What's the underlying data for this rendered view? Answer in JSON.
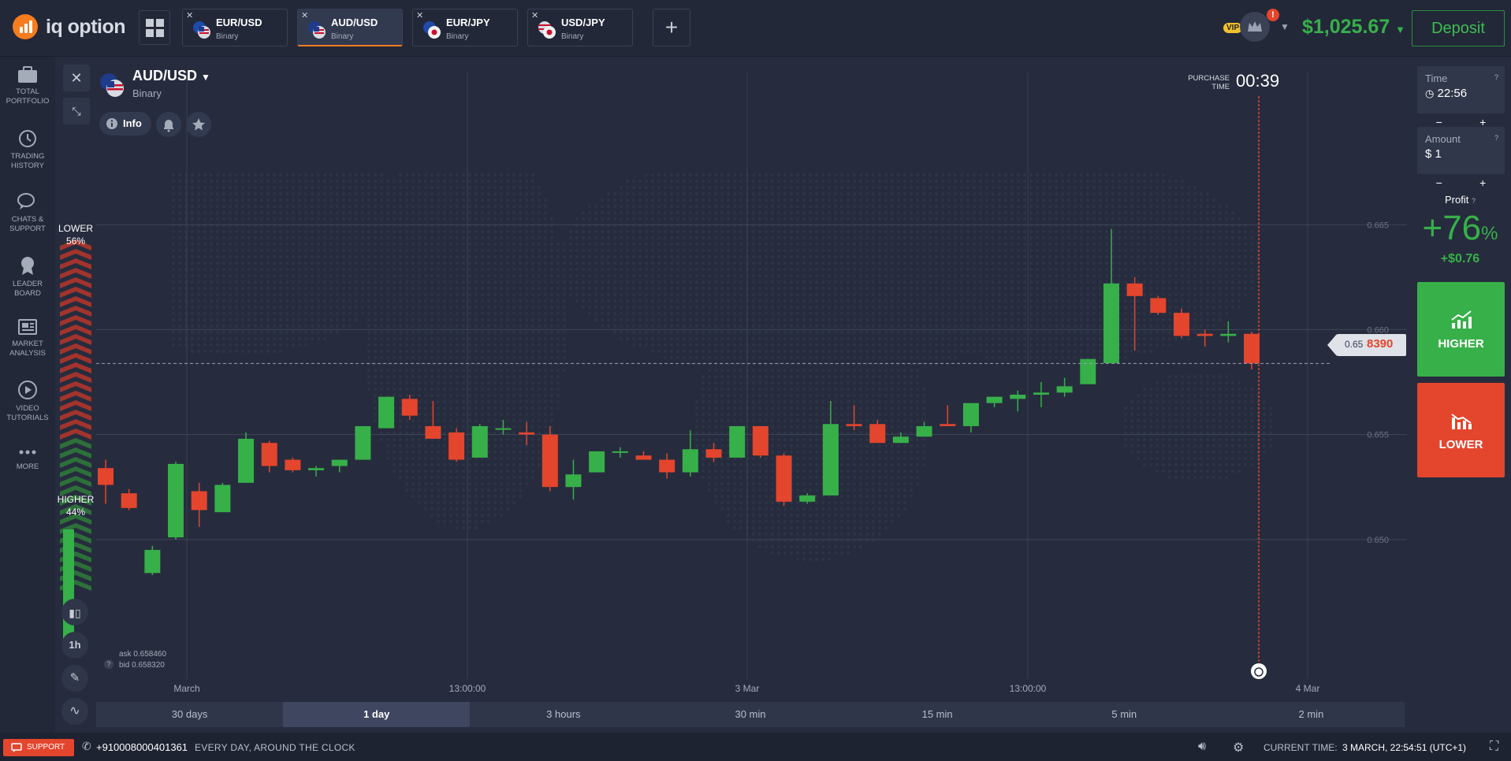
{
  "brand": {
    "name": "iq option"
  },
  "tabs": [
    {
      "pair": "EUR/USD",
      "type": "Binary",
      "active": false
    },
    {
      "pair": "AUD/USD",
      "type": "Binary",
      "active": true
    },
    {
      "pair": "EUR/JPY",
      "type": "Binary",
      "active": false
    },
    {
      "pair": "USD/JPY",
      "type": "Binary",
      "active": false
    }
  ],
  "account": {
    "vip_label": "VIP",
    "alert": "!",
    "balance": "$1,025.67",
    "deposit_label": "Deposit"
  },
  "sidebar": {
    "items": [
      {
        "label": "TOTAL\nPORTFOLIO",
        "icon": "briefcase-icon"
      },
      {
        "label": "TRADING\nHISTORY",
        "icon": "history-icon"
      },
      {
        "label": "CHATS &\nSUPPORT",
        "icon": "chat-icon"
      },
      {
        "label": "LEADER\nBOARD",
        "icon": "medal-icon"
      },
      {
        "label": "MARKET\nANALYSIS",
        "icon": "newspaper-icon"
      },
      {
        "label": "VIDEO\nTUTORIALS",
        "icon": "play-icon"
      },
      {
        "label": "MORE",
        "icon": "more-icon"
      }
    ]
  },
  "asset": {
    "pair": "AUD/USD",
    "type": "Binary",
    "info_label": "Info"
  },
  "sentiment": {
    "lower_label": "LOWER",
    "lower_pct": "56%",
    "higher_label": "HIGHER",
    "higher_pct": "44%",
    "lower_fraction": 0.56
  },
  "purchase": {
    "label_line1": "PURCHASE",
    "label_line2": "TIME",
    "value": "00:39"
  },
  "price": {
    "prefix": "0.65",
    "highlight": "8390",
    "ask": "ask 0.658460",
    "bid": "bid 0.658320"
  },
  "tools": {
    "timeframe": "1h"
  },
  "periods": [
    "30 days",
    "1 day",
    "3 hours",
    "30 min",
    "15 min",
    "5 min",
    "2 min"
  ],
  "active_period": "1 day",
  "trade": {
    "time_label": "Time",
    "time_value": "22:56",
    "amount_label": "Amount",
    "amount_currency": "$",
    "amount_value": "1",
    "profit_label": "Profit",
    "profit_pct": "+76",
    "profit_pct_sign": "%",
    "profit_amount": "+$0.76",
    "higher_label": "HIGHER",
    "lower_label": "LOWER",
    "stepper_minus": "−",
    "stepper_plus": "+"
  },
  "footer": {
    "support_label": "SUPPORT",
    "phone": "+910008000401361",
    "hours": "EVERY DAY, AROUND THE CLOCK",
    "current_time_label": "CURRENT TIME:",
    "current_time_value": "3 MARCH, 22:54:51 (UTC+1)"
  },
  "colors": {
    "up": "#37b04a",
    "down": "#e4452d",
    "accent": "#f57c1f"
  },
  "chart_data": {
    "type": "candlestick",
    "ylim": [
      0.6465,
      0.6673
    ],
    "y_ticks": [
      "0.650",
      "0.655",
      "0.660",
      "0.665"
    ],
    "x_ticks": [
      "March",
      "13:00:00",
      "3 Mar",
      "13:00:00",
      "4 Mar"
    ],
    "current_price": 0.65839,
    "candles": [
      {
        "o": 0.6534,
        "h": 0.6538,
        "l": 0.6517,
        "c": 0.6526
      },
      {
        "o": 0.6522,
        "h": 0.6524,
        "l": 0.6514,
        "c": 0.6515
      },
      {
        "o": 0.6484,
        "h": 0.6497,
        "l": 0.6483,
        "c": 0.6495
      },
      {
        "o": 0.6501,
        "h": 0.6537,
        "l": 0.65,
        "c": 0.6536
      },
      {
        "o": 0.6523,
        "h": 0.6527,
        "l": 0.6506,
        "c": 0.6514
      },
      {
        "o": 0.6513,
        "h": 0.6527,
        "l": 0.6513,
        "c": 0.6526
      },
      {
        "o": 0.6527,
        "h": 0.6551,
        "l": 0.6527,
        "c": 0.6548
      },
      {
        "o": 0.6546,
        "h": 0.6547,
        "l": 0.6532,
        "c": 0.6535
      },
      {
        "o": 0.6538,
        "h": 0.6539,
        "l": 0.6532,
        "c": 0.6533
      },
      {
        "o": 0.6533,
        "h": 0.6535,
        "l": 0.653,
        "c": 0.6534
      },
      {
        "o": 0.6535,
        "h": 0.6538,
        "l": 0.6532,
        "c": 0.6538
      },
      {
        "o": 0.6538,
        "h": 0.6553,
        "l": 0.6538,
        "c": 0.6554
      },
      {
        "o": 0.6553,
        "h": 0.6568,
        "l": 0.6553,
        "c": 0.6568
      },
      {
        "o": 0.6567,
        "h": 0.6569,
        "l": 0.6557,
        "c": 0.6559
      },
      {
        "o": 0.6554,
        "h": 0.6566,
        "l": 0.655,
        "c": 0.6548
      },
      {
        "o": 0.6551,
        "h": 0.6553,
        "l": 0.6537,
        "c": 0.6538
      },
      {
        "o": 0.6539,
        "h": 0.6555,
        "l": 0.6539,
        "c": 0.6554
      },
      {
        "o": 0.6553,
        "h": 0.6557,
        "l": 0.655,
        "c": 0.6553
      },
      {
        "o": 0.6551,
        "h": 0.6556,
        "l": 0.6545,
        "c": 0.655
      },
      {
        "o": 0.655,
        "h": 0.6554,
        "l": 0.6523,
        "c": 0.6525
      },
      {
        "o": 0.6525,
        "h": 0.6538,
        "l": 0.6519,
        "c": 0.6531
      },
      {
        "o": 0.6532,
        "h": 0.6542,
        "l": 0.6532,
        "c": 0.6542
      },
      {
        "o": 0.6542,
        "h": 0.6544,
        "l": 0.6539,
        "c": 0.6542
      },
      {
        "o": 0.654,
        "h": 0.6542,
        "l": 0.6538,
        "c": 0.6538
      },
      {
        "o": 0.6538,
        "h": 0.6541,
        "l": 0.6529,
        "c": 0.6532
      },
      {
        "o": 0.6532,
        "h": 0.6552,
        "l": 0.653,
        "c": 0.6543
      },
      {
        "o": 0.6543,
        "h": 0.6546,
        "l": 0.6537,
        "c": 0.6539
      },
      {
        "o": 0.6539,
        "h": 0.6554,
        "l": 0.6539,
        "c": 0.6554
      },
      {
        "o": 0.6554,
        "h": 0.6554,
        "l": 0.6539,
        "c": 0.654
      },
      {
        "o": 0.654,
        "h": 0.6541,
        "l": 0.6516,
        "c": 0.6518
      },
      {
        "o": 0.6518,
        "h": 0.6522,
        "l": 0.6517,
        "c": 0.6521
      },
      {
        "o": 0.6521,
        "h": 0.6566,
        "l": 0.6521,
        "c": 0.6555
      },
      {
        "o": 0.6555,
        "h": 0.6564,
        "l": 0.6552,
        "c": 0.6554
      },
      {
        "o": 0.6555,
        "h": 0.6557,
        "l": 0.6546,
        "c": 0.6546
      },
      {
        "o": 0.6546,
        "h": 0.6551,
        "l": 0.6546,
        "c": 0.6549
      },
      {
        "o": 0.6549,
        "h": 0.6556,
        "l": 0.6549,
        "c": 0.6554
      },
      {
        "o": 0.6555,
        "h": 0.6564,
        "l": 0.6554,
        "c": 0.6554
      },
      {
        "o": 0.6554,
        "h": 0.6563,
        "l": 0.6551,
        "c": 0.6565
      },
      {
        "o": 0.6565,
        "h": 0.6568,
        "l": 0.6563,
        "c": 0.6568
      },
      {
        "o": 0.6567,
        "h": 0.6571,
        "l": 0.6561,
        "c": 0.6569
      },
      {
        "o": 0.6569,
        "h": 0.6575,
        "l": 0.6563,
        "c": 0.657
      },
      {
        "o": 0.657,
        "h": 0.6577,
        "l": 0.6568,
        "c": 0.6573
      },
      {
        "o": 0.6574,
        "h": 0.6586,
        "l": 0.6575,
        "c": 0.6586
      },
      {
        "o": 0.6584,
        "h": 0.6648,
        "l": 0.6584,
        "c": 0.6622
      },
      {
        "o": 0.6622,
        "h": 0.6625,
        "l": 0.659,
        "c": 0.6616
      },
      {
        "o": 0.6615,
        "h": 0.6616,
        "l": 0.6607,
        "c": 0.6608
      },
      {
        "o": 0.6608,
        "h": 0.661,
        "l": 0.6596,
        "c": 0.6597
      },
      {
        "o": 0.6598,
        "h": 0.66,
        "l": 0.6592,
        "c": 0.6597
      },
      {
        "o": 0.6597,
        "h": 0.6604,
        "l": 0.6594,
        "c": 0.6598
      },
      {
        "o": 0.6598,
        "h": 0.6599,
        "l": 0.6581,
        "c": 0.65839
      }
    ]
  }
}
